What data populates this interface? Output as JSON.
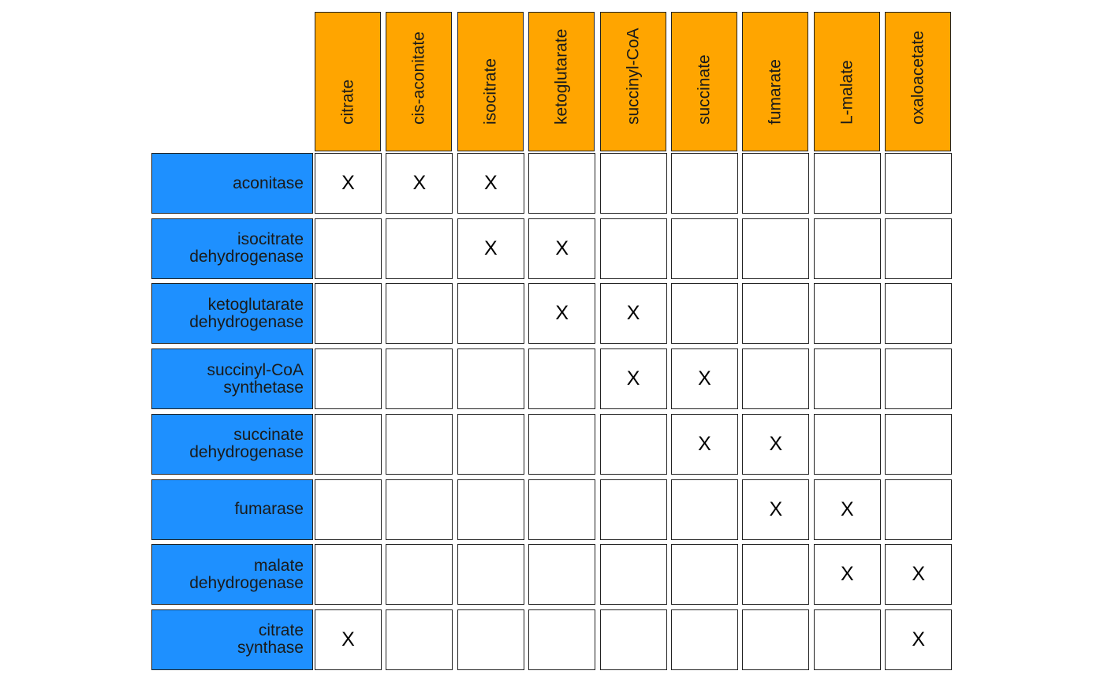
{
  "columns": [
    "citrate",
    "cis-aconitate",
    "isocitrate",
    "ketoglutarate",
    "succinyl-CoA",
    "succinate",
    "fumarate",
    "L-malate",
    "oxaloacetate"
  ],
  "rows": [
    {
      "label": [
        "aconitase"
      ],
      "marks": [
        0,
        1,
        2
      ]
    },
    {
      "label": [
        "isocitrate",
        "dehydrogenase"
      ],
      "marks": [
        2,
        3
      ]
    },
    {
      "label": [
        "ketoglutarate",
        "dehydrogenase"
      ],
      "marks": [
        3,
        4
      ]
    },
    {
      "label": [
        "succinyl-CoA",
        "synthetase"
      ],
      "marks": [
        4,
        5
      ]
    },
    {
      "label": [
        "succinate",
        "dehydrogenase"
      ],
      "marks": [
        5,
        6
      ]
    },
    {
      "label": [
        "fumarase"
      ],
      "marks": [
        6,
        7
      ]
    },
    {
      "label": [
        "malate",
        "dehydrogenase"
      ],
      "marks": [
        7,
        8
      ]
    },
    {
      "label": [
        "citrate",
        "synthase"
      ],
      "marks": [
        0,
        8
      ]
    }
  ],
  "mark_symbol": "X",
  "colors": {
    "column_header": "#FFA500",
    "row_header": "#1E90FF",
    "cell": "#FFFFFF",
    "border": "#222222"
  }
}
